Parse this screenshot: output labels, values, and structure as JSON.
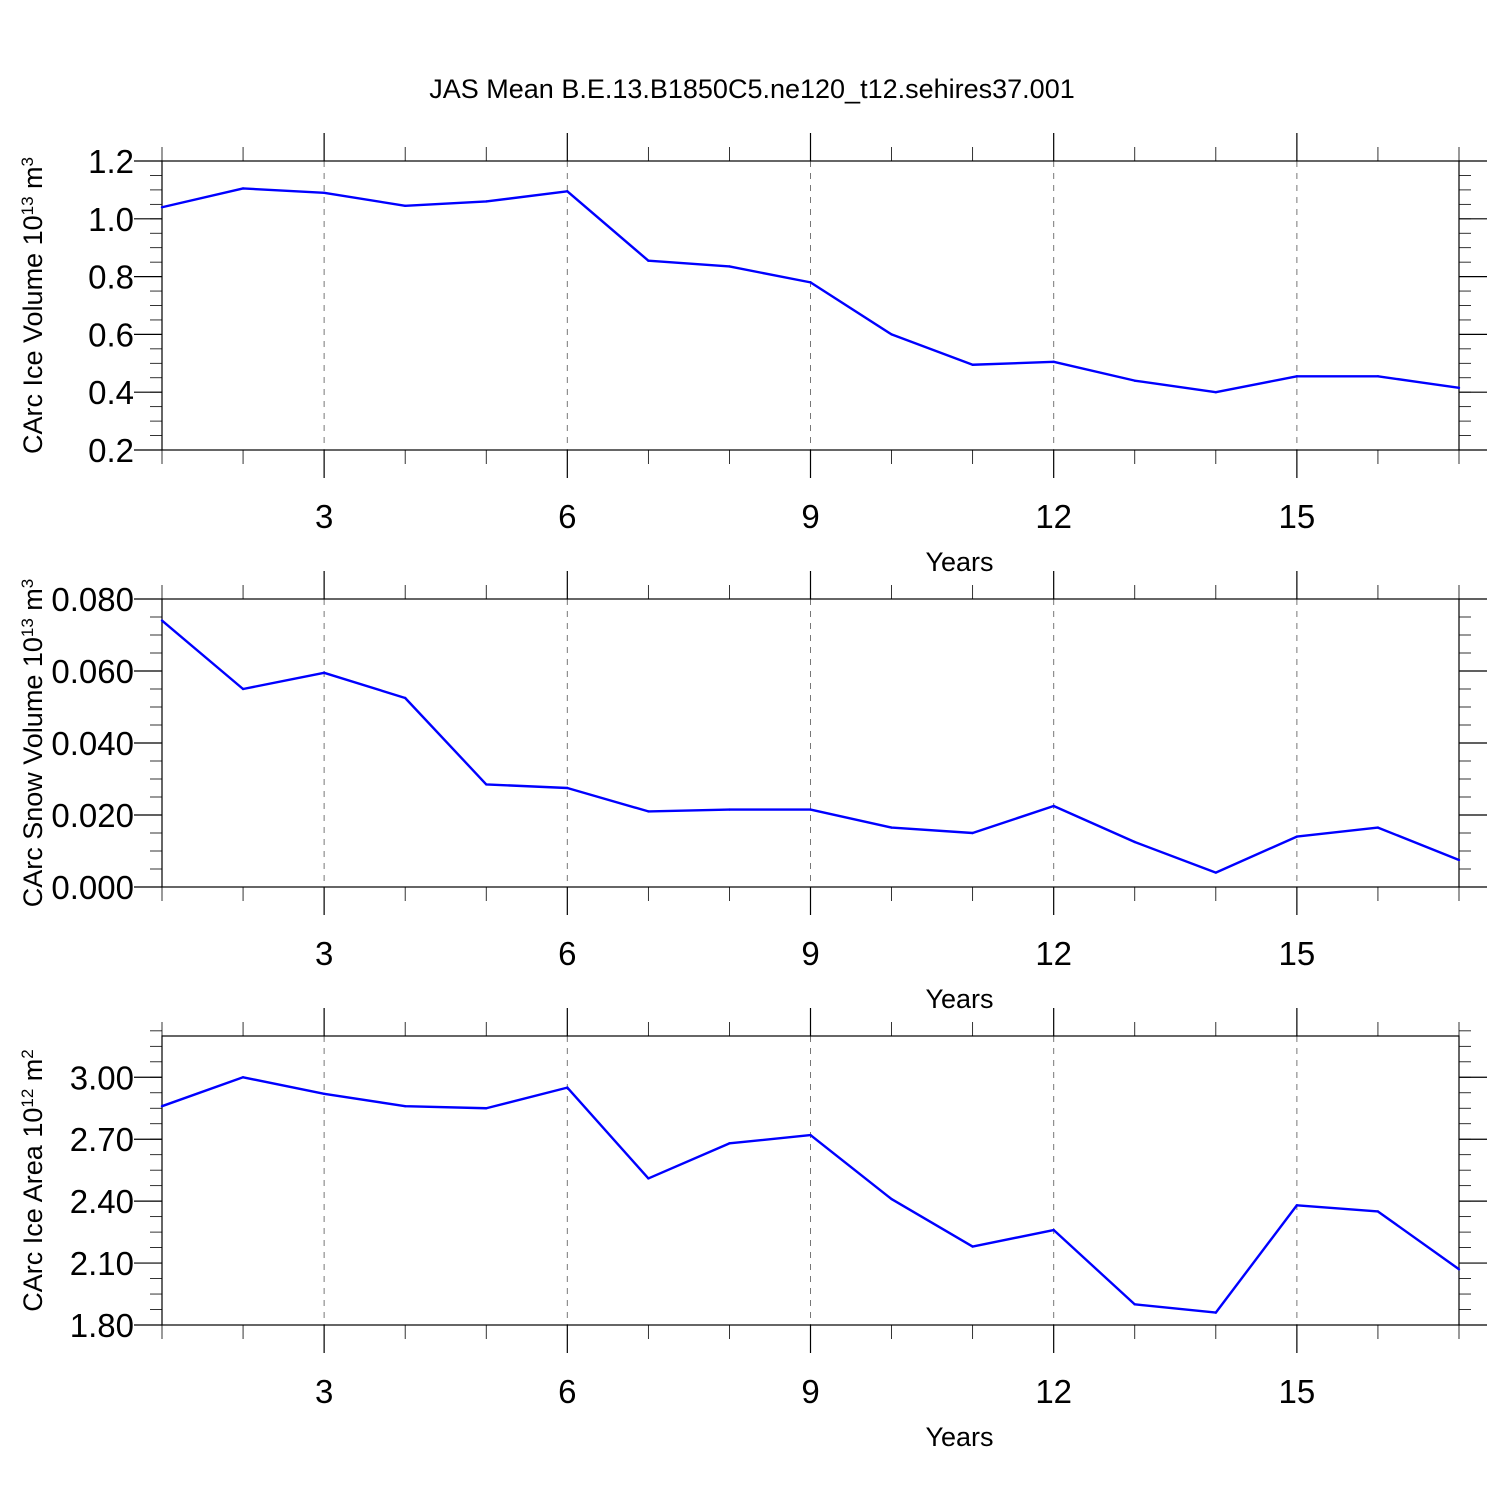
{
  "title": "JAS Mean B.E.13.B1850C5.ne120_t12.sehires37.001",
  "colors": {
    "series": "#0000ff"
  },
  "chart_data": [
    {
      "type": "line",
      "xlabel": "Years",
      "ylabel_parts": [
        "CArc Ice Volume 10",
        "13",
        " m",
        "3"
      ],
      "x": [
        1,
        2,
        3,
        4,
        5,
        6,
        7,
        8,
        9,
        10,
        11,
        12,
        13,
        14,
        15,
        16,
        17
      ],
      "values": [
        1.04,
        1.105,
        1.09,
        1.045,
        1.06,
        1.095,
        0.855,
        0.835,
        0.78,
        0.6,
        0.495,
        0.505,
        0.44,
        0.4,
        0.455,
        0.455,
        0.415
      ],
      "xlim": [
        1,
        17
      ],
      "ylim": [
        0.2,
        1.2
      ],
      "xticks": [
        3,
        6,
        9,
        12,
        15
      ],
      "xtick_labels": [
        "3",
        "6",
        "9",
        "12",
        "15"
      ],
      "yticks": [
        0.2,
        0.4,
        0.6,
        0.8,
        1.0,
        1.2
      ],
      "ytick_labels": [
        "0.2",
        "0.4",
        "0.6",
        "0.8",
        "1.0",
        "1.2"
      ],
      "y_minor_step": 0.05,
      "grid": "x-dashed"
    },
    {
      "type": "line",
      "xlabel": "Years",
      "ylabel_parts": [
        "CArc Snow Volume 10",
        "13",
        " m",
        "3"
      ],
      "x": [
        1,
        2,
        3,
        4,
        5,
        6,
        7,
        8,
        9,
        10,
        11,
        12,
        13,
        14,
        15,
        16,
        17
      ],
      "values": [
        0.074,
        0.055,
        0.0595,
        0.0525,
        0.0285,
        0.0275,
        0.021,
        0.0215,
        0.0215,
        0.0165,
        0.015,
        0.0225,
        0.0125,
        0.004,
        0.014,
        0.0165,
        0.0075
      ],
      "xlim": [
        1,
        17
      ],
      "ylim": [
        0.0,
        0.08
      ],
      "xticks": [
        3,
        6,
        9,
        12,
        15
      ],
      "xtick_labels": [
        "3",
        "6",
        "9",
        "12",
        "15"
      ],
      "yticks": [
        0.0,
        0.02,
        0.04,
        0.06,
        0.08
      ],
      "ytick_labels": [
        "0.000",
        "0.020",
        "0.040",
        "0.060",
        "0.080"
      ],
      "y_minor_step": 0.005,
      "grid": "x-dashed"
    },
    {
      "type": "line",
      "xlabel": "Years",
      "ylabel_parts": [
        "CArc Ice Area 10",
        "12",
        " m",
        "2"
      ],
      "x": [
        1,
        2,
        3,
        4,
        5,
        6,
        7,
        8,
        9,
        10,
        11,
        12,
        13,
        14,
        15,
        16,
        17
      ],
      "values": [
        2.86,
        3.0,
        2.92,
        2.86,
        2.85,
        2.95,
        2.51,
        2.68,
        2.72,
        2.41,
        2.18,
        2.26,
        1.9,
        1.86,
        2.38,
        2.35,
        2.07
      ],
      "xlim": [
        1,
        17
      ],
      "ylim": [
        1.8,
        3.2
      ],
      "xticks": [
        3,
        6,
        9,
        12,
        15
      ],
      "xtick_labels": [
        "3",
        "6",
        "9",
        "12",
        "15"
      ],
      "yticks": [
        1.8,
        2.1,
        2.4,
        2.7,
        3.0
      ],
      "ytick_labels": [
        "1.80",
        "2.10",
        "2.40",
        "2.70",
        "3.00"
      ],
      "y_minor_step": 0.075,
      "grid": "x-dashed"
    }
  ]
}
